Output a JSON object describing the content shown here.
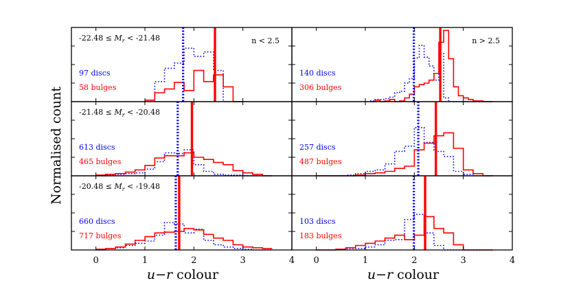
{
  "figure": {
    "ylabel": "Normalised count",
    "xlabel_var": "u−r",
    "xlabel_unit": " colour",
    "left_tag": "n < 2.5",
    "right_tag": "n > 2.5",
    "colors": {
      "disc": "#0000ff",
      "bulge": "#ff0000",
      "axes": "#000000"
    }
  },
  "chart_data": [
    {
      "type": "histogram",
      "id": "p00",
      "mag_lo": "-22.48",
      "mag_hi": "-21.48",
      "tag": "n < 2.5",
      "xlim": [
        -0.5,
        4
      ],
      "ylim": [
        0,
        1
      ],
      "bin_width": 0.2,
      "bin_start": 1.0,
      "disc_label": "97 discs",
      "bulge_label": "58 bulges",
      "disc_values": [
        0.02,
        0.27,
        0.45,
        0.52,
        0.72,
        0.61,
        0.67,
        0.42,
        0.0,
        0.0
      ],
      "bulge_values": [
        0.02,
        0.12,
        0.17,
        0.26,
        0.15,
        0.42,
        0.27,
        0.36,
        0.2,
        0.0
      ],
      "disc_median": 1.78,
      "bulge_median": 2.43
    },
    {
      "type": "histogram",
      "id": "p01",
      "tag": "n > 2.5",
      "xlim": [
        -0.5,
        4
      ],
      "ylim": [
        0,
        1
      ],
      "bin_width": 0.1,
      "bin_start": 1.1,
      "disc_label": "140 discs",
      "bulge_label": "306 bulges",
      "disc_values": [
        0.01,
        0.03,
        0.03,
        0.04,
        0.06,
        0.12,
        0.14,
        0.25,
        0.31,
        0.59,
        0.76,
        0.6,
        0.48,
        0.29,
        0.65,
        0.05,
        0.0,
        0.0,
        0.0,
        0.0,
        0.0,
        0.0,
        0.0,
        0.0,
        0.0
      ],
      "bulge_values": [
        0.0,
        0.02,
        0.0,
        0.01,
        0.03,
        0.0,
        0.01,
        0.05,
        0.1,
        0.2,
        0.23,
        0.25,
        0.29,
        0.38,
        0.8,
        0.96,
        0.58,
        0.2,
        0.08,
        0.05,
        0.03,
        0.01,
        0.01,
        0.0,
        0.0
      ],
      "disc_median": 1.99,
      "bulge_median": 2.53
    },
    {
      "type": "histogram",
      "id": "p10",
      "mag_lo": "-21.48",
      "mag_hi": "-20.48",
      "xlim": [
        -0.5,
        4
      ],
      "ylim": [
        0,
        1
      ],
      "bin_width": 0.2,
      "bin_start": 0.0,
      "disc_label": "613 discs",
      "bulge_label": "465 bulges",
      "disc_values": [
        0.0,
        0.01,
        0.02,
        0.03,
        0.04,
        0.09,
        0.19,
        0.31,
        0.3,
        0.35,
        0.15,
        0.06,
        0.02,
        0.01,
        0.01,
        0.0,
        0.0,
        0.0
      ],
      "bulge_values": [
        0.01,
        0.02,
        0.03,
        0.05,
        0.08,
        0.14,
        0.24,
        0.27,
        0.27,
        0.31,
        0.25,
        0.22,
        0.18,
        0.15,
        0.07,
        0.04,
        0.02,
        0.0
      ],
      "disc_median": 1.67,
      "bulge_median": 1.96
    },
    {
      "type": "histogram",
      "id": "p11",
      "xlim": [
        -0.5,
        4
      ],
      "ylim": [
        0,
        1
      ],
      "bin_width": 0.2,
      "bin_start": 0.0,
      "disc_label": "257 discs",
      "bulge_label": "487 bulges",
      "disc_values": [
        0.0,
        0.0,
        0.0,
        0.01,
        0.03,
        0.06,
        0.08,
        0.16,
        0.33,
        0.4,
        0.65,
        0.45,
        0.33,
        0.26,
        0.06,
        0.02,
        0.0,
        0.0
      ],
      "bulge_values": [
        0.0,
        0.0,
        0.0,
        0.0,
        0.01,
        0.03,
        0.04,
        0.06,
        0.1,
        0.13,
        0.35,
        0.44,
        0.54,
        0.58,
        0.37,
        0.08,
        0.03,
        0.0
      ],
      "disc_median": 2.08,
      "bulge_median": 2.44
    },
    {
      "type": "histogram",
      "id": "p20",
      "mag_lo": "-20.48",
      "mag_hi": "-19.48",
      "xlim": [
        -0.5,
        4
      ],
      "ylim": [
        0,
        1
      ],
      "bin_width": 0.2,
      "bin_start": 0.0,
      "disc_label": "660 discs",
      "bulge_label": "717 bulges",
      "disc_values": [
        0.0,
        0.02,
        0.03,
        0.06,
        0.09,
        0.12,
        0.2,
        0.37,
        0.35,
        0.23,
        0.28,
        0.13,
        0.07,
        0.04,
        0.02,
        0.01,
        0.0,
        0.0
      ],
      "bulge_values": [
        0.01,
        0.02,
        0.04,
        0.08,
        0.13,
        0.18,
        0.23,
        0.24,
        0.25,
        0.29,
        0.27,
        0.21,
        0.16,
        0.13,
        0.07,
        0.04,
        0.03,
        0.02
      ],
      "disc_median": 1.63,
      "bulge_median": 1.7
    },
    {
      "type": "histogram",
      "id": "p21",
      "xlim": [
        -0.5,
        4
      ],
      "ylim": [
        0,
        1
      ],
      "bin_width": 0.2,
      "bin_start": 0.0,
      "disc_label": "103 discs",
      "bulge_label": "183 bulges",
      "disc_values": [
        0.0,
        0.0,
        0.01,
        0.02,
        0.02,
        0.04,
        0.07,
        0.13,
        0.14,
        0.41,
        0.48,
        0.23,
        0.06,
        0.0,
        0.0,
        0.0,
        0.0,
        0.0
      ],
      "bulge_values": [
        0.0,
        0.0,
        0.01,
        0.03,
        0.06,
        0.09,
        0.12,
        0.16,
        0.2,
        0.14,
        0.2,
        0.45,
        0.29,
        0.23,
        0.07,
        0.0,
        0.0,
        0.0
      ],
      "disc_median": 1.99,
      "bulge_median": 2.22
    }
  ],
  "axes": {
    "x_left_ticks": [
      "0",
      "1",
      "2",
      "3",
      "4"
    ],
    "x_right_ticks": [
      "0",
      "1",
      "2",
      "3",
      "4"
    ]
  }
}
